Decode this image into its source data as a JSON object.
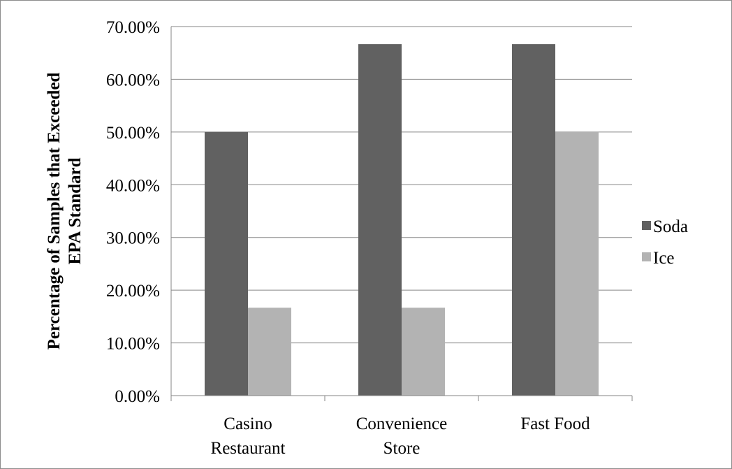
{
  "chart_data": {
    "type": "bar",
    "title": "",
    "xlabel": "",
    "ylabel_lines": [
      "Percentage of Samples that Exceeded",
      "EPA Standard"
    ],
    "categories": [
      [
        "Casino",
        "Restaurant"
      ],
      [
        "Convenience",
        "Store"
      ],
      [
        "Fast Food"
      ]
    ],
    "series": [
      {
        "name": "Soda",
        "color": "#616161",
        "values": [
          50.0,
          66.67,
          66.67
        ]
      },
      {
        "name": "Ice",
        "color": "#b3b3b3",
        "values": [
          16.67,
          16.67,
          50.0
        ]
      }
    ],
    "ylim": [
      0,
      70
    ],
    "yticks": [
      0,
      10,
      20,
      30,
      40,
      50,
      60,
      70
    ],
    "ytick_labels": [
      "0.00%",
      "10.00%",
      "20.00%",
      "30.00%",
      "40.00%",
      "50.00%",
      "60.00%",
      "70.00%"
    ],
    "grid": true,
    "legend_position": "right"
  }
}
